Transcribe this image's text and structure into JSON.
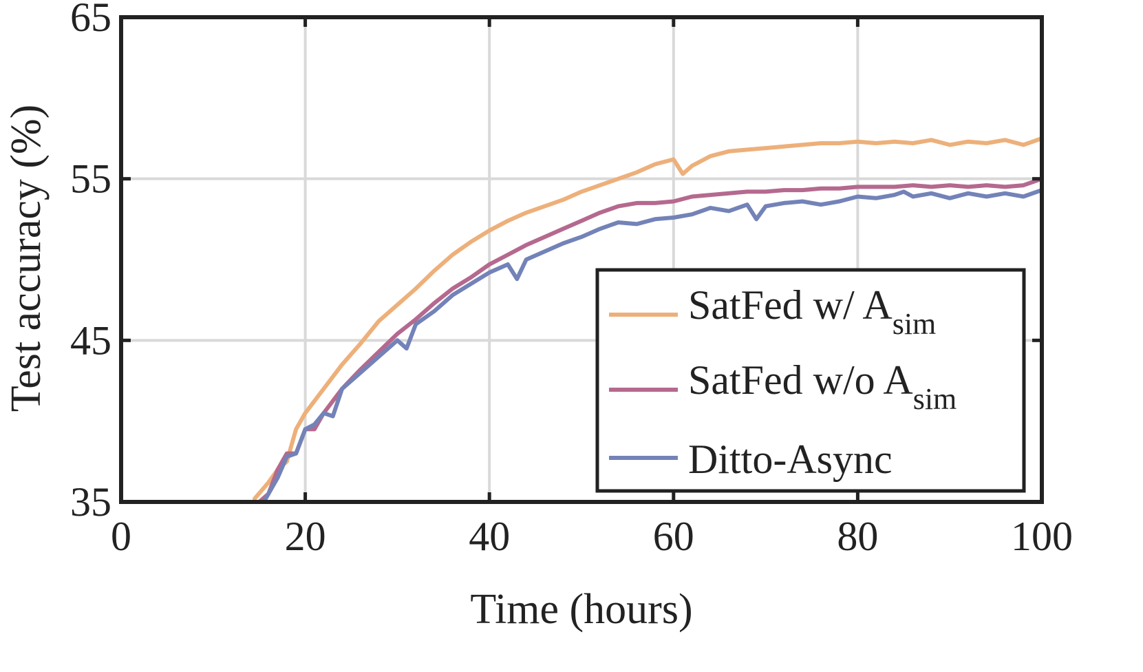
{
  "chart_data": {
    "type": "line",
    "title": "",
    "xlabel": "Time (hours)",
    "ylabel": "Test accuracy (%)",
    "xlim": [
      0,
      100
    ],
    "ylim": [
      35,
      65
    ],
    "xticks": [
      "0",
      "20",
      "40",
      "60",
      "80",
      "100"
    ],
    "yticks": [
      "35",
      "45",
      "55",
      "65"
    ],
    "grid": true,
    "legend_position": "bottom-right",
    "series": [
      {
        "name": "SatFed w/ A",
        "subscript": "sim",
        "color": "#EDB07A",
        "x": [
          14.5,
          16,
          17,
          18,
          19,
          20,
          22,
          24,
          26,
          28,
          30,
          32,
          34,
          36,
          38,
          40,
          42,
          44,
          46,
          48,
          50,
          52,
          54,
          56,
          58,
          60,
          61,
          62,
          64,
          66,
          68,
          70,
          72,
          74,
          76,
          78,
          80,
          82,
          84,
          86,
          88,
          90,
          92,
          94,
          96,
          98,
          100
        ],
        "y": [
          35.2,
          36.2,
          37.0,
          37.5,
          39.5,
          40.5,
          42.0,
          43.5,
          44.8,
          46.2,
          47.2,
          48.2,
          49.3,
          50.3,
          51.1,
          51.8,
          52.4,
          52.9,
          53.3,
          53.7,
          54.2,
          54.6,
          55.0,
          55.4,
          55.9,
          56.2,
          55.3,
          55.8,
          56.4,
          56.7,
          56.8,
          56.9,
          57.0,
          57.1,
          57.2,
          57.2,
          57.3,
          57.2,
          57.3,
          57.2,
          57.4,
          57.1,
          57.3,
          57.2,
          57.4,
          57.1,
          57.5
        ]
      },
      {
        "name": "SatFed w/o A",
        "subscript": "sim",
        "color": "#B5698E",
        "x": [
          15,
          16,
          17,
          18,
          19,
          20,
          21,
          22,
          24,
          26,
          28,
          30,
          32,
          34,
          36,
          38,
          40,
          42,
          44,
          46,
          48,
          50,
          52,
          54,
          56,
          58,
          60,
          62,
          64,
          66,
          68,
          70,
          72,
          74,
          76,
          78,
          80,
          82,
          84,
          86,
          88,
          90,
          92,
          94,
          96,
          98,
          100
        ],
        "y": [
          35.0,
          35.5,
          37.0,
          38.0,
          38.0,
          39.5,
          39.5,
          40.5,
          42.0,
          43.2,
          44.3,
          45.4,
          46.3,
          47.3,
          48.2,
          48.9,
          49.7,
          50.3,
          50.9,
          51.4,
          51.9,
          52.4,
          52.9,
          53.3,
          53.5,
          53.5,
          53.6,
          53.9,
          54.0,
          54.1,
          54.2,
          54.2,
          54.3,
          54.3,
          54.4,
          54.4,
          54.5,
          54.5,
          54.5,
          54.6,
          54.5,
          54.6,
          54.5,
          54.6,
          54.5,
          54.6,
          55.0
        ]
      },
      {
        "name": "Ditto-Async",
        "color": "#7383B8",
        "x": [
          15.5,
          17,
          18,
          19,
          20,
          21,
          22,
          23,
          24,
          26,
          28,
          30,
          31,
          32,
          34,
          36,
          38,
          40,
          42,
          43,
          44,
          46,
          48,
          50,
          52,
          54,
          56,
          58,
          60,
          62,
          64,
          66,
          68,
          69,
          70,
          72,
          74,
          76,
          78,
          80,
          82,
          84,
          85,
          86,
          88,
          90,
          92,
          94,
          96,
          98,
          100
        ],
        "y": [
          35.0,
          36.5,
          37.8,
          38.0,
          39.5,
          39.8,
          40.5,
          40.3,
          42.0,
          43.0,
          44.0,
          45.0,
          44.5,
          46.0,
          46.8,
          47.8,
          48.5,
          49.2,
          49.7,
          48.8,
          50.0,
          50.5,
          51.0,
          51.4,
          51.9,
          52.3,
          52.2,
          52.5,
          52.6,
          52.8,
          53.2,
          53.0,
          53.4,
          52.5,
          53.3,
          53.5,
          53.6,
          53.4,
          53.6,
          53.9,
          53.8,
          54.0,
          54.2,
          53.9,
          54.1,
          53.8,
          54.1,
          53.9,
          54.1,
          53.9,
          54.3
        ]
      }
    ]
  }
}
